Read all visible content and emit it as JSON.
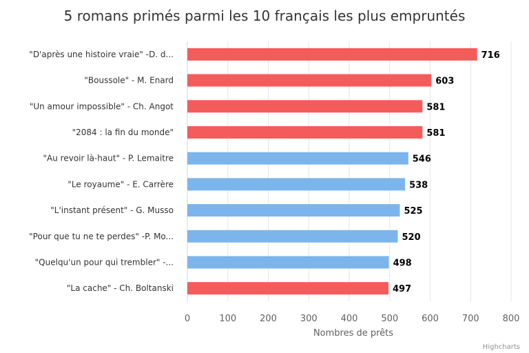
{
  "chart_data": {
    "type": "bar",
    "orientation": "horizontal",
    "title": "5 romans primés parmi les 10 français les plus empruntés",
    "xlabel": "Nombres de prêts",
    "ylabel": "",
    "xlim": [
      0,
      800
    ],
    "x_ticks": [
      0,
      100,
      200,
      300,
      400,
      500,
      600,
      700,
      800
    ],
    "grid": true,
    "categories": [
      "\"D'après une histoire vraie\" -D. d...",
      "\"Boussole\" - M. Enard",
      "\"Un amour impossible\" - Ch. Angot",
      "\"2084 : la fin du monde\"",
      "\"Au revoir là-haut\" - P. Lemaitre",
      "\"Le royaume\" - E. Carrère",
      "\"L'instant présent\" - G. Musso",
      "\"Pour que tu ne te perdes\" -P. Mo...",
      "\"Quelqu'un pour qui trembler\" -...",
      "\"La cache\" - Ch. Boltanski"
    ],
    "values": [
      716,
      603,
      581,
      581,
      546,
      538,
      525,
      520,
      498,
      497
    ],
    "bar_colors": [
      "#f45b5b",
      "#f45b5b",
      "#f45b5b",
      "#f45b5b",
      "#7cb5ec",
      "#7cb5ec",
      "#7cb5ec",
      "#7cb5ec",
      "#7cb5ec",
      "#f45b5b"
    ],
    "data_labels": true
  },
  "credits": "Highcharts",
  "colors": {
    "award": "#f45b5b",
    "other": "#7cb5ec",
    "grid": "#e6e6e6",
    "axis_line": "#ccd6eb"
  }
}
